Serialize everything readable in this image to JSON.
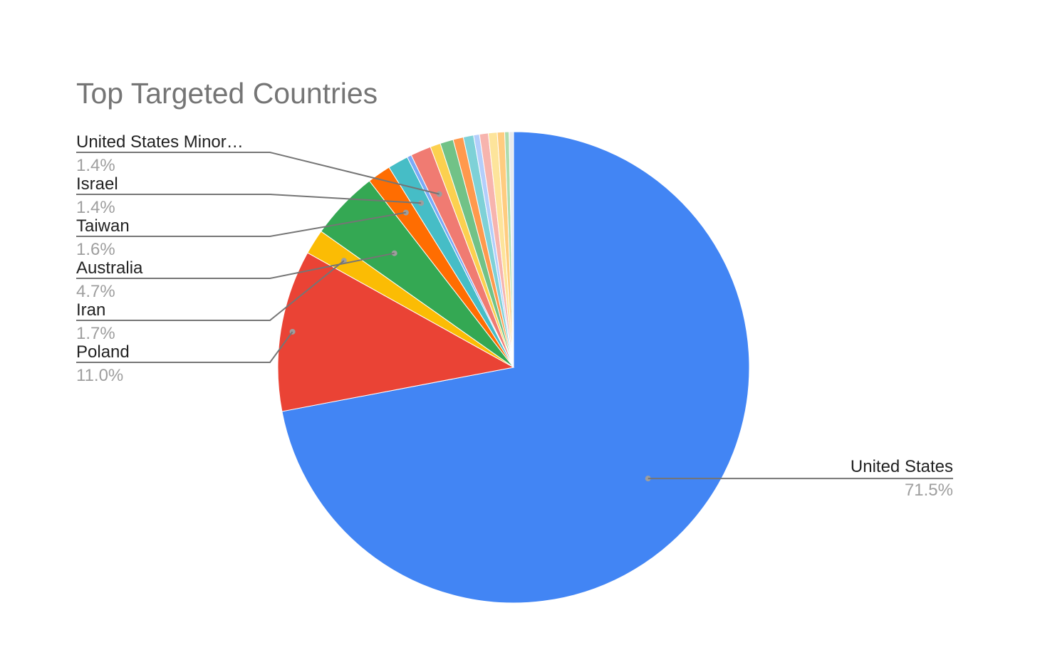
{
  "chart_data": {
    "type": "pie",
    "title": "Top Targeted Countries",
    "start": "top",
    "direction": "clockwise",
    "slices": [
      {
        "label": "United States",
        "value": 71.5,
        "display": "71.5%",
        "color": "#4285F4",
        "labeled": true
      },
      {
        "label": "Poland",
        "value": 11.0,
        "display": "11.0%",
        "color": "#EA4335",
        "labeled": true
      },
      {
        "label": "Iran",
        "value": 1.7,
        "display": "1.7%",
        "color": "#FBBC04",
        "labeled": true
      },
      {
        "label": "Australia",
        "value": 4.7,
        "display": "4.7%",
        "color": "#34A853",
        "labeled": true
      },
      {
        "label": "Taiwan",
        "value": 1.6,
        "display": "1.6%",
        "color": "#FF6D01",
        "labeled": true
      },
      {
        "label": "Israel",
        "value": 1.4,
        "display": "1.4%",
        "color": "#46BDC6",
        "labeled": true
      },
      {
        "label": "",
        "value": 0.3,
        "display": "",
        "color": "#7BAAF7",
        "labeled": false
      },
      {
        "label": "United States Minor…",
        "value": 1.4,
        "display": "1.4%",
        "color": "#F07B72",
        "labeled": true
      },
      {
        "label": "",
        "value": 0.7,
        "display": "",
        "color": "#FCD04F",
        "labeled": false
      },
      {
        "label": "",
        "value": 0.9,
        "display": "",
        "color": "#71C287",
        "labeled": false
      },
      {
        "label": "",
        "value": 0.7,
        "display": "",
        "color": "#FF994D",
        "labeled": false
      },
      {
        "label": "",
        "value": 0.7,
        "display": "",
        "color": "#7ED1D7",
        "labeled": false
      },
      {
        "label": "",
        "value": 0.4,
        "display": "",
        "color": "#B3CEFB",
        "labeled": false
      },
      {
        "label": "",
        "value": 0.6,
        "display": "",
        "color": "#F7B4AE",
        "labeled": false
      },
      {
        "label": "",
        "value": 0.6,
        "display": "",
        "color": "#FDE49B",
        "labeled": false
      },
      {
        "label": "",
        "value": 0.5,
        "display": "",
        "color": "#FFCC80",
        "labeled": false
      },
      {
        "label": "",
        "value": 0.3,
        "display": "",
        "color": "#AEDCAE",
        "labeled": false
      },
      {
        "label": "",
        "value": 0.3,
        "display": "",
        "color": "#E8EAED",
        "labeled": false
      }
    ]
  }
}
